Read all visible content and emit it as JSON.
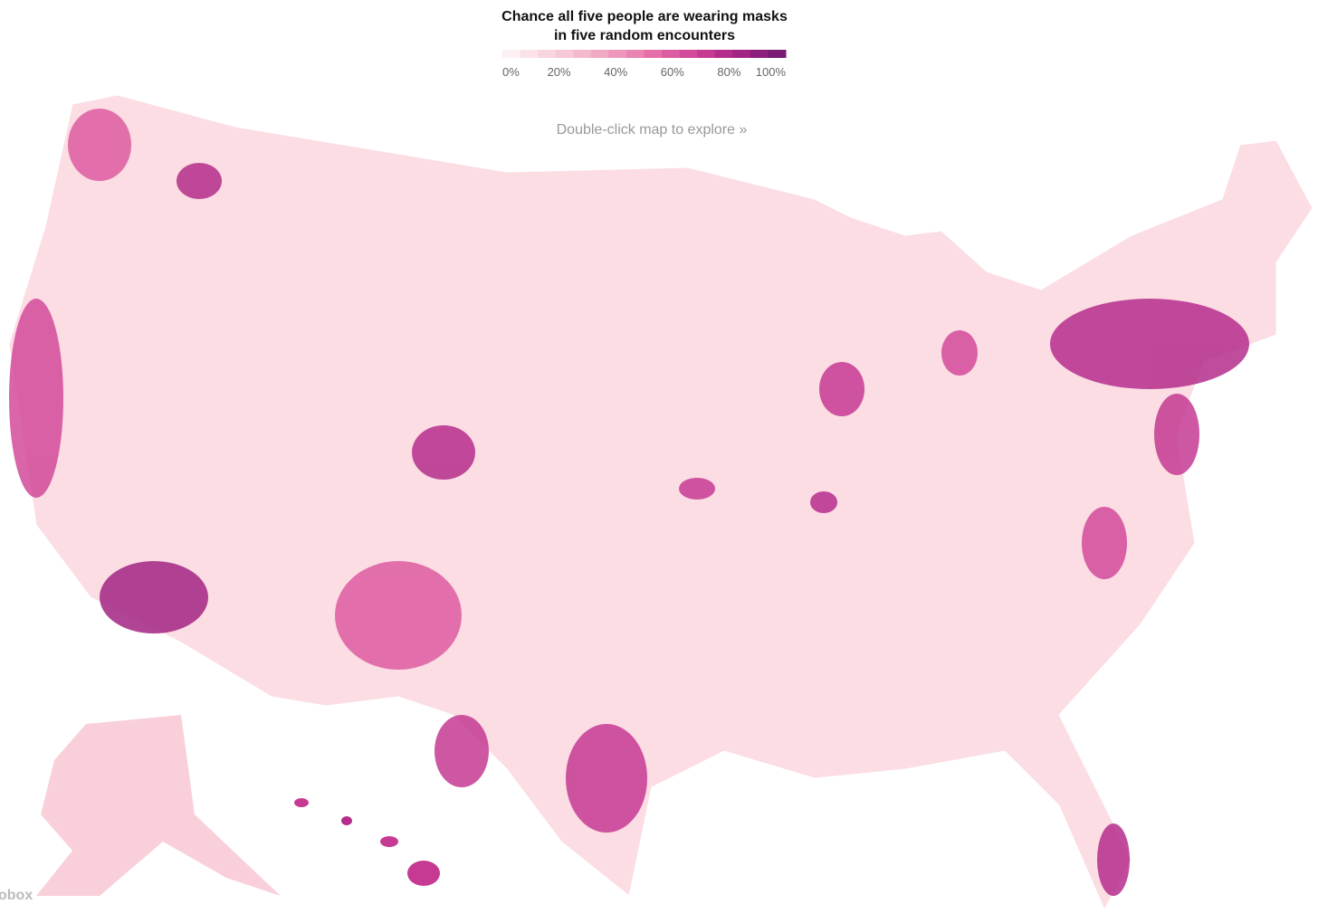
{
  "header": {
    "title_line1": "Chance all five people are wearing masks",
    "title_line2": "in five random encounters"
  },
  "legend": {
    "range": [
      0,
      100
    ],
    "colors": [
      "#fdf0f2",
      "#fbe3e8",
      "#f9d6df",
      "#f7c8d6",
      "#f5b9cd",
      "#f2a9c3",
      "#ee97ba",
      "#ea84b1",
      "#e570a9",
      "#dd5ca1",
      "#d34a9a",
      "#c63a93",
      "#b52d8c",
      "#a22484",
      "#8e1e7d",
      "#7a1a75"
    ],
    "ticks": [
      {
        "value": 0,
        "label": "0%"
      },
      {
        "value": 20,
        "label": "20%"
      },
      {
        "value": 40,
        "label": "40%"
      },
      {
        "value": 60,
        "label": "60%"
      },
      {
        "value": 80,
        "label": "80%"
      },
      {
        "value": 100,
        "label": "100%"
      }
    ]
  },
  "hint": "Double-click map to explore »",
  "attribution": "obox"
}
